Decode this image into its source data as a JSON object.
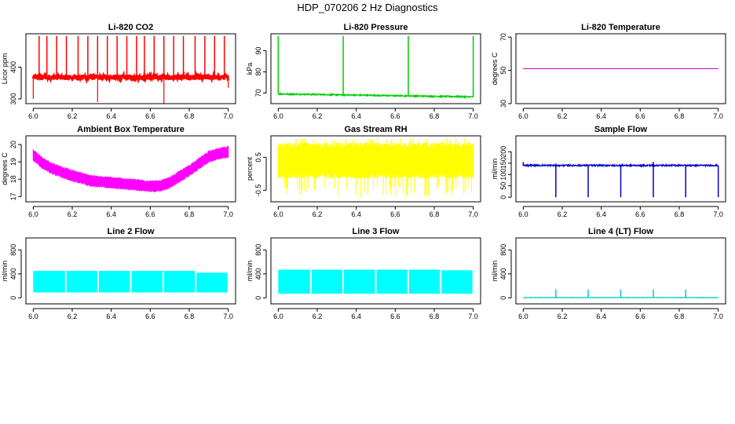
{
  "page_title": "HDP_070206  2 Hz Diagnostics",
  "chart_data": [
    {
      "type": "line",
      "title": "Li-820 CO2",
      "ylabel": "Licor ppm",
      "color": "#ff0000",
      "xlim": [
        6.0,
        7.0
      ],
      "ylim": [
        285,
        505
      ],
      "x_ticks": [
        6.0,
        6.2,
        6.4,
        6.6,
        6.8,
        7.0
      ],
      "x_tick_labels": [
        "6.0",
        "6.2",
        "6.4",
        "6.6",
        "6.8",
        "7.0"
      ],
      "y_ticks": [
        300,
        400
      ],
      "y_tick_labels": [
        "300",
        "400"
      ],
      "signal": {
        "kind": "baseline_with_spikes",
        "baseline": 368,
        "noise": 8,
        "spike_top": 498,
        "spike_x": [
          6.03,
          6.07,
          6.12,
          6.17,
          6.23,
          6.28,
          6.33,
          6.38,
          6.43,
          6.48,
          6.53,
          6.57,
          6.62,
          6.67,
          6.72,
          6.77,
          6.83,
          6.88,
          6.93,
          6.98
        ],
        "dips": [
          {
            "x": 6.0,
            "y": 300
          },
          {
            "x": 6.33,
            "y": 290
          },
          {
            "x": 6.67,
            "y": 285
          },
          {
            "x": 7.0,
            "y": 335
          }
        ]
      }
    },
    {
      "type": "line",
      "title": "Li-820 Pressure",
      "ylabel": "kPa",
      "color": "#00cc00",
      "xlim": [
        6.0,
        7.0
      ],
      "ylim": [
        65,
        98
      ],
      "x_ticks": [
        6.0,
        6.2,
        6.4,
        6.6,
        6.8,
        7.0
      ],
      "x_tick_labels": [
        "6.0",
        "6.2",
        "6.4",
        "6.6",
        "6.8",
        "7.0"
      ],
      "y_ticks": [
        70,
        80,
        90
      ],
      "y_tick_labels": [
        "70",
        "80",
        "90"
      ],
      "signal": {
        "kind": "drift_with_spikes",
        "start": 69.6,
        "end": 68.2,
        "noise": 0.3,
        "spike_top": 97,
        "spike_x": [
          6.0,
          6.333,
          6.667,
          7.0
        ]
      }
    },
    {
      "type": "line",
      "title": "Li-820 Temperature",
      "ylabel": "degrees C",
      "color": "#cc00cc",
      "xlim": [
        6.0,
        7.0
      ],
      "ylim": [
        30,
        72
      ],
      "x_ticks": [
        6.0,
        6.2,
        6.4,
        6.6,
        6.8,
        7.0
      ],
      "x_tick_labels": [
        "6.0",
        "6.2",
        "6.4",
        "6.6",
        "6.8",
        "7.0"
      ],
      "y_ticks": [
        30,
        50,
        70
      ],
      "y_tick_labels": [
        "30",
        "50",
        "70"
      ],
      "signal": {
        "kind": "constant",
        "value": 51
      }
    },
    {
      "type": "area",
      "title": "Ambient Box Temperature",
      "ylabel": "degrees C",
      "color": "#ff00ff",
      "xlim": [
        6.0,
        7.0
      ],
      "ylim": [
        16.7,
        20.5
      ],
      "x_ticks": [
        6.0,
        6.2,
        6.4,
        6.6,
        6.8,
        7.0
      ],
      "x_tick_labels": [
        "6.0",
        "6.2",
        "6.4",
        "6.6",
        "6.8",
        "7.0"
      ],
      "y_ticks": [
        17,
        18,
        19,
        20
      ],
      "y_tick_labels": [
        "17",
        "18",
        "19",
        "20"
      ],
      "signal": {
        "kind": "band",
        "x": [
          6.0,
          6.05,
          6.1,
          6.2,
          6.3,
          6.4,
          6.5,
          6.6,
          6.65,
          6.7,
          6.8,
          6.9,
          7.0
        ],
        "center": [
          19.4,
          18.9,
          18.6,
          18.2,
          17.9,
          17.8,
          17.7,
          17.6,
          17.6,
          17.8,
          18.5,
          19.3,
          19.6
        ],
        "halfwidth": 0.35
      }
    },
    {
      "type": "area",
      "title": "Gas Stream RH",
      "ylabel": "percent",
      "color": "#ffff00",
      "xlim": [
        6.0,
        7.0
      ],
      "ylim": [
        -0.85,
        1.15
      ],
      "x_ticks": [
        6.0,
        6.2,
        6.4,
        6.6,
        6.8,
        7.0
      ],
      "x_tick_labels": [
        "6.0",
        "6.2",
        "6.4",
        "6.6",
        "6.8",
        "7.0"
      ],
      "y_ticks": [
        -0.5,
        0.5
      ],
      "y_tick_labels": [
        "-0.5",
        "0.5"
      ],
      "signal": {
        "kind": "band",
        "x": [
          6.0,
          7.0
        ],
        "center": [
          0.4,
          0.4
        ],
        "halfwidth": 0.55,
        "spike_low": -0.75,
        "spike_high": 1.1
      }
    },
    {
      "type": "line",
      "title": "Sample Flow",
      "ylabel": "ml/min",
      "color": "#0000cc",
      "xlim": [
        6.0,
        7.0
      ],
      "ylim": [
        -20,
        270
      ],
      "x_ticks": [
        6.0,
        6.2,
        6.4,
        6.6,
        6.8,
        7.0
      ],
      "x_tick_labels": [
        "6.0",
        "6.2",
        "6.4",
        "6.6",
        "6.8",
        "7.0"
      ],
      "y_ticks": [
        0,
        50,
        100,
        150,
        200
      ],
      "y_tick_labels": [
        "0",
        "50",
        "100",
        "150",
        "200"
      ],
      "signal": {
        "kind": "baseline_with_dips",
        "baseline": 140,
        "noise": 3,
        "dip_x": [
          6.167,
          6.333,
          6.5,
          6.667,
          6.833,
          7.0
        ],
        "dip_bottom": 0,
        "spike_x": [
          6.0,
          6.667
        ],
        "spike_top": 155
      }
    },
    {
      "type": "area",
      "title": "Line 2 Flow",
      "ylabel": "ml/min",
      "color": "#00ffff",
      "xlim": [
        6.0,
        7.0
      ],
      "ylim": [
        -100,
        1000
      ],
      "x_ticks": [
        6.0,
        6.2,
        6.4,
        6.6,
        6.8,
        7.0
      ],
      "x_tick_labels": [
        "6.0",
        "6.2",
        "6.4",
        "6.6",
        "6.8",
        "7.0"
      ],
      "y_ticks": [
        0,
        400,
        800
      ],
      "y_tick_labels": [
        "0",
        "400",
        "800"
      ],
      "signal": {
        "kind": "segments",
        "low": 90,
        "high": [
          450,
          450,
          450,
          450,
          450,
          420
        ],
        "breaks": [
          6.0,
          6.167,
          6.333,
          6.5,
          6.667,
          6.833,
          7.0
        ]
      }
    },
    {
      "type": "area",
      "title": "Line 3 Flow",
      "ylabel": "ml/min",
      "color": "#00ffff",
      "xlim": [
        6.0,
        7.0
      ],
      "ylim": [
        -100,
        1000
      ],
      "x_ticks": [
        6.0,
        6.2,
        6.4,
        6.6,
        6.8,
        7.0
      ],
      "x_tick_labels": [
        "6.0",
        "6.2",
        "6.4",
        "6.6",
        "6.8",
        "7.0"
      ],
      "y_ticks": [
        0,
        400,
        800
      ],
      "y_tick_labels": [
        "0",
        "400",
        "800"
      ],
      "signal": {
        "kind": "segments",
        "low": 70,
        "high": [
          470,
          470,
          470,
          470,
          470,
          460
        ],
        "breaks": [
          6.0,
          6.167,
          6.333,
          6.5,
          6.667,
          6.833,
          7.0
        ]
      }
    },
    {
      "type": "line",
      "title": "Line 4 (LT) Flow",
      "ylabel": "ml/min",
      "color": "#00cccc",
      "xlim": [
        6.0,
        7.0
      ],
      "ylim": [
        -100,
        1000
      ],
      "x_ticks": [
        6.0,
        6.2,
        6.4,
        6.6,
        6.8,
        7.0
      ],
      "x_tick_labels": [
        "6.0",
        "6.2",
        "6.4",
        "6.6",
        "6.8",
        "7.0"
      ],
      "y_ticks": [
        0,
        400,
        800
      ],
      "y_tick_labels": [
        "0",
        "400",
        "800"
      ],
      "signal": {
        "kind": "baseline_with_spikes",
        "baseline": 5,
        "noise": 3,
        "spike_top": 140,
        "spike_x": [
          6.167,
          6.333,
          6.5,
          6.667,
          6.833
        ]
      }
    }
  ]
}
